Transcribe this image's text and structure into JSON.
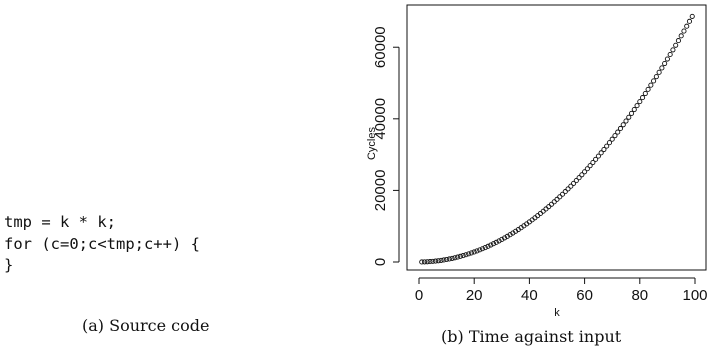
{
  "code_panel": {
    "lines": [
      "tmp = k * k;",
      "for (c=0;c<tmp;c++) {",
      "}"
    ],
    "caption": "(a) Source code"
  },
  "chart_panel": {
    "caption": "(b) Time against input"
  },
  "chart_data": {
    "type": "scatter",
    "title": "",
    "xlabel": "k",
    "ylabel": "Cycles",
    "xlim": [
      0,
      100
    ],
    "ylim": [
      0,
      69000
    ],
    "x_ticks": [
      0,
      20,
      40,
      60,
      80,
      100
    ],
    "y_ticks": [
      0,
      20000,
      40000,
      60000
    ],
    "x_tick_labels": [
      "0",
      "20",
      "40",
      "60",
      "80",
      "100"
    ],
    "y_tick_labels": [
      "0",
      "20000",
      "40000",
      "60000"
    ],
    "grid": false,
    "marker": "open-circle",
    "series": [
      {
        "x_start": 1,
        "x_end": 99,
        "x_step": 1,
        "formula": "y = 7 * k^2",
        "points_sample": [
          [
            1,
            7
          ],
          [
            20,
            2800
          ],
          [
            40,
            11200
          ],
          [
            60,
            25200
          ],
          [
            80,
            44800
          ],
          [
            99,
            68607
          ]
        ]
      }
    ]
  }
}
